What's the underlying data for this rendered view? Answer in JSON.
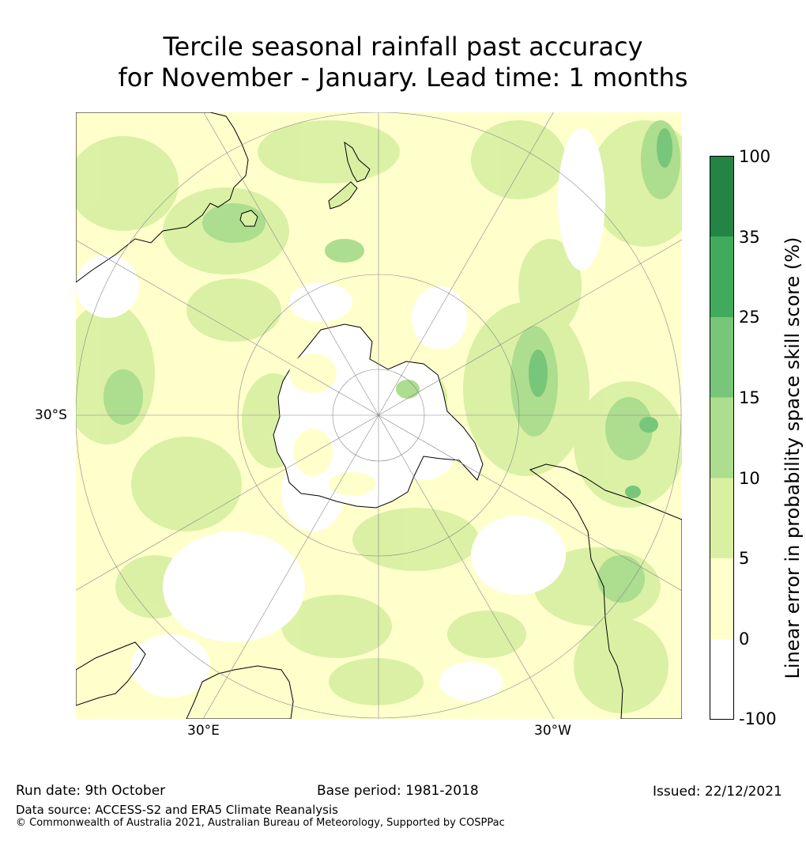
{
  "title_line1": "Tercile seasonal rainfall past accuracy",
  "title_line2": "for November - January. Lead time: 1 months",
  "map": {
    "lat_label": "30°S",
    "lon_label_left": "30°E",
    "lon_label_right": "30°W",
    "colors": {
      "white": "#ffffff",
      "pale_yellow": "#ffffcc",
      "light_green": "#d9f0a3",
      "green": "#addd8e",
      "mid_green": "#78c679",
      "strong_green": "#41ab5d",
      "dark_green": "#238443",
      "land_outline": "#000000",
      "grid": "#888888"
    }
  },
  "colorbar": {
    "label": "Linear error in probability space skill score (%)",
    "ticks": [
      "100",
      "35",
      "25",
      "15",
      "10",
      "5",
      "0",
      "-100"
    ],
    "colors": [
      "#238443",
      "#41ab5d",
      "#78c679",
      "#addd8e",
      "#d9f0a3",
      "#ffffcc",
      "#ffffff"
    ]
  },
  "footer": {
    "run_date": "Run date: 9th October",
    "base_period": "Base period: 1981-2018",
    "issued": "Issued: 22/12/2021",
    "data_source": "Data source: ACCESS-S2 and ERA5 Climate Reanalysis",
    "copyright": "© Commonwealth of Australia 2021, Australian Bureau of Meteorology, Supported by COSPPac"
  }
}
